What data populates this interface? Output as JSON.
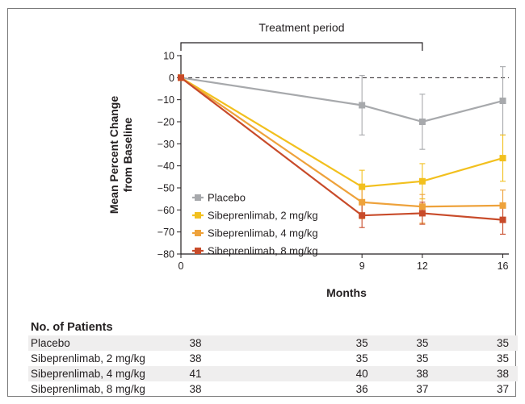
{
  "chart_data": {
    "type": "line",
    "treatment_label": "Treatment period",
    "xlabel": "Months",
    "ylabel_lines": [
      "Mean Percent Change",
      "from Baseline"
    ],
    "x": [
      0,
      9,
      12,
      16
    ],
    "xticks": [
      "0",
      "9",
      "12",
      "16"
    ],
    "xlim": [
      0,
      16.3
    ],
    "ylim": [
      -80,
      10
    ],
    "yticks": [
      "10",
      "0",
      "−10",
      "−20",
      "−30",
      "−40",
      "−50",
      "−60",
      "−70",
      "−80"
    ],
    "ytick_values": [
      10,
      0,
      -10,
      -20,
      -30,
      -40,
      -50,
      -60,
      -70,
      -80
    ],
    "treatment_period": [
      0,
      12
    ],
    "reference_line": 0,
    "legend_position": "lower-left",
    "series": [
      {
        "name": "Placebo",
        "color": "#a7a9ac",
        "values": [
          0,
          -12.5,
          -20,
          -10.5
        ],
        "err_low": [
          0,
          -26,
          -32.5,
          -26
        ],
        "err_high": [
          0,
          1,
          -7.5,
          5
        ]
      },
      {
        "name": "Sibeprenlimab, 2 mg/kg",
        "color": "#f2c01e",
        "values": [
          0,
          -49.5,
          -47,
          -36.5
        ],
        "err_low": [
          0,
          -57,
          -55,
          -47
        ],
        "err_high": [
          0,
          -42,
          -39,
          -26
        ]
      },
      {
        "name": "Sibeprenlimab, 4 mg/kg",
        "color": "#eea23b",
        "values": [
          0,
          -56.5,
          -58.5,
          -58
        ],
        "err_low": [
          0,
          -64,
          -66,
          -65
        ],
        "err_high": [
          0,
          -49,
          -53,
          -51
        ]
      },
      {
        "name": "Sibeprenlimab, 8 mg/kg",
        "color": "#c84b2a",
        "values": [
          0,
          -62.5,
          -61.5,
          -64.5
        ],
        "err_low": [
          0,
          -68,
          -66.5,
          -71
        ],
        "err_high": [
          0,
          -57,
          -56.5,
          -58
        ]
      }
    ]
  },
  "patients": {
    "title": "No. of Patients",
    "rows": [
      {
        "name": "Placebo",
        "counts": [
          "38",
          "35",
          "35",
          "35"
        ]
      },
      {
        "name": "Sibeprenlimab, 2 mg/kg",
        "counts": [
          "38",
          "35",
          "35",
          "35"
        ]
      },
      {
        "name": "Sibeprenlimab, 4 mg/kg",
        "counts": [
          "41",
          "40",
          "38",
          "38"
        ]
      },
      {
        "name": "Sibeprenlimab, 8 mg/kg",
        "counts": [
          "38",
          "36",
          "37",
          "37"
        ]
      }
    ]
  }
}
